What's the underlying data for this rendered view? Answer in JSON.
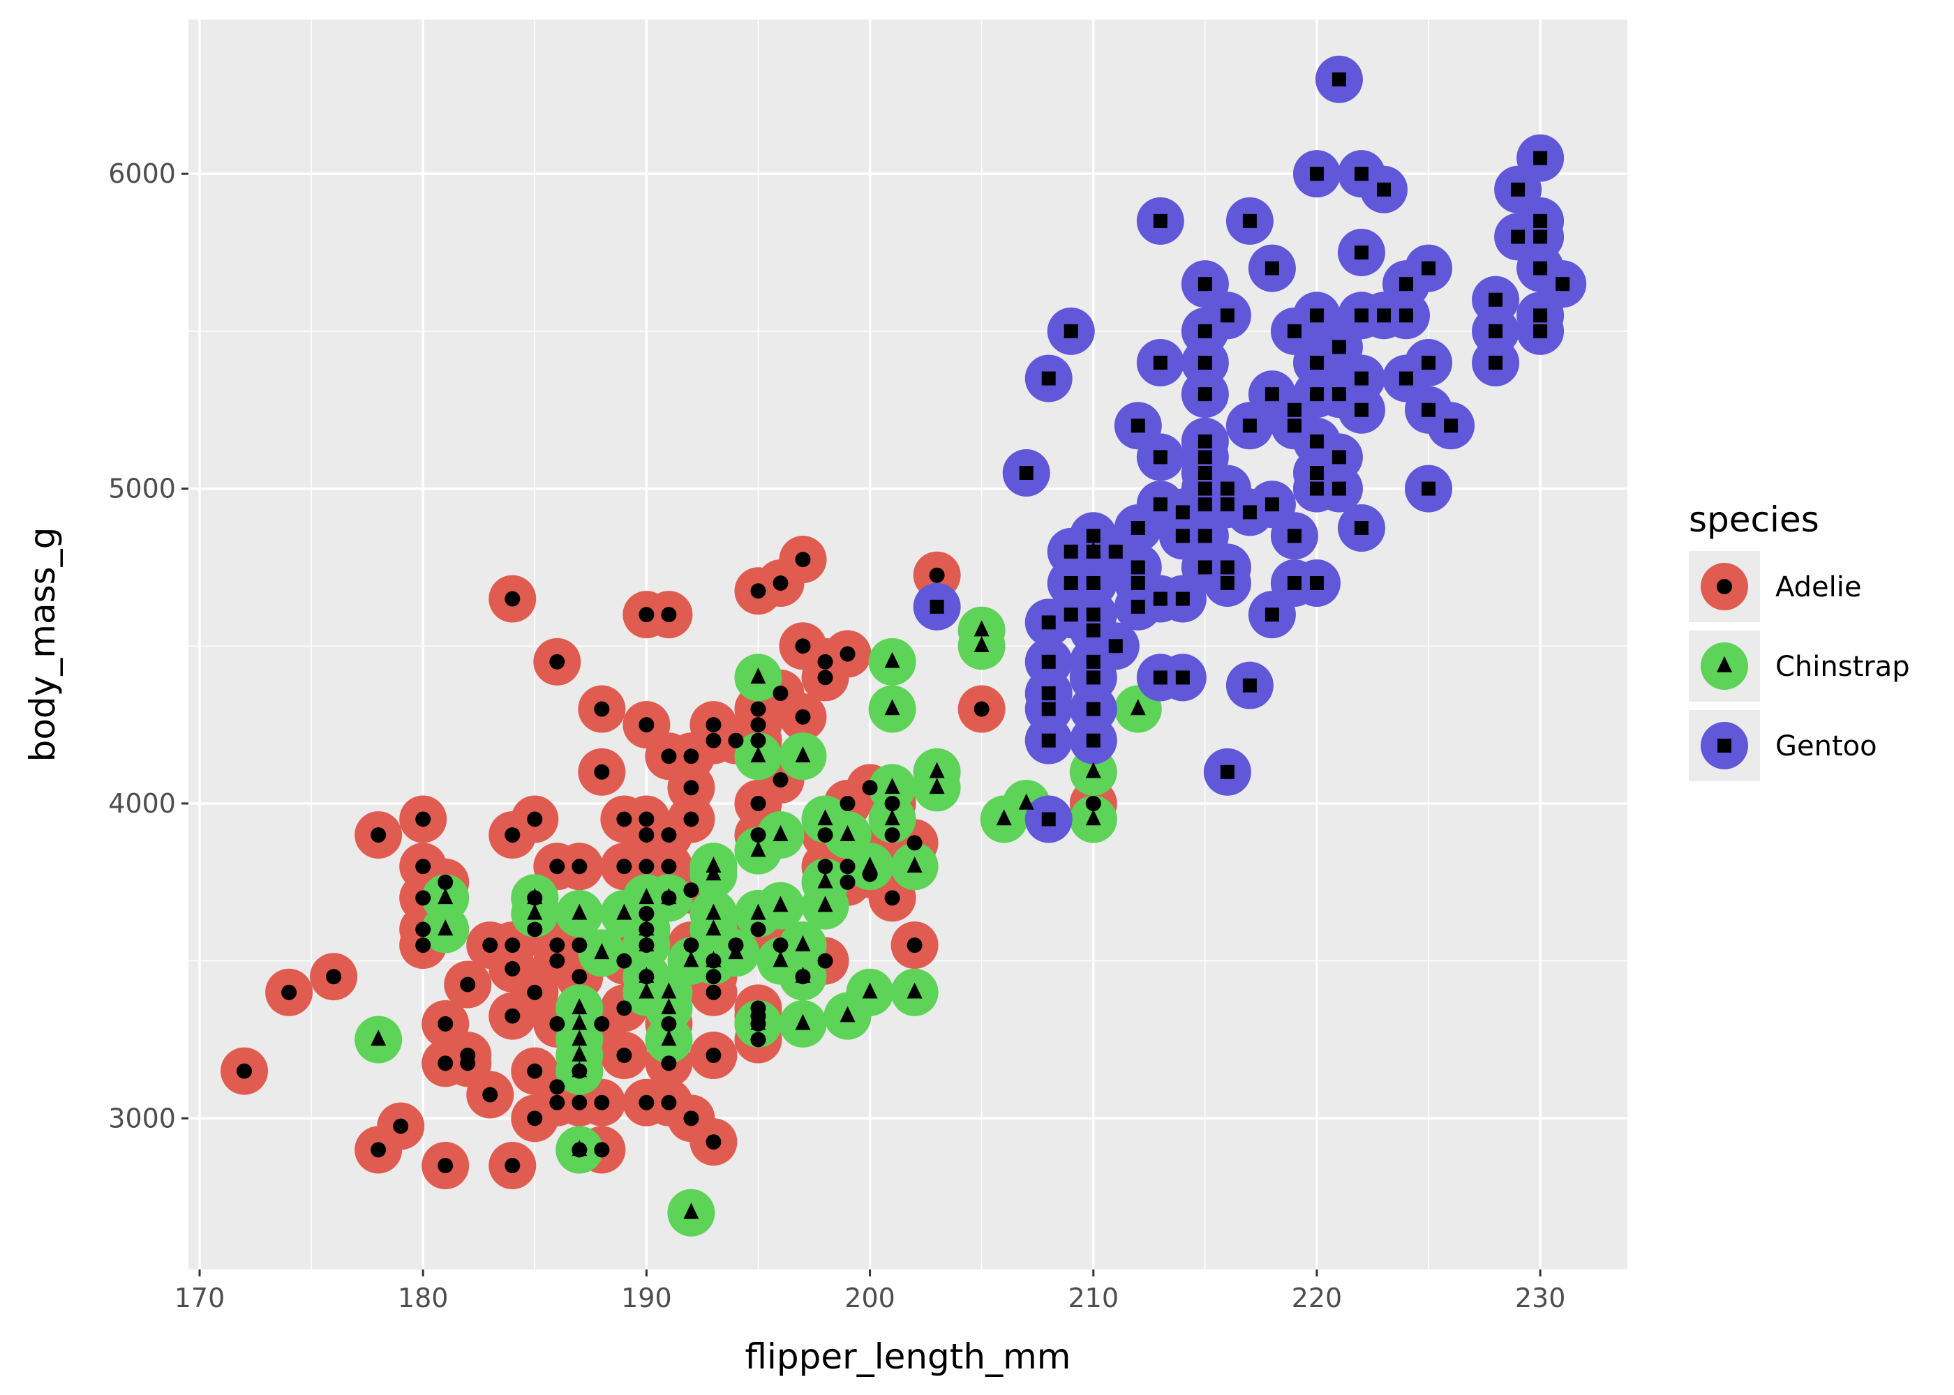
{
  "chart_data": {
    "type": "scatter",
    "xlabel": "flipper_length_mm",
    "ylabel": "body_mass_g",
    "xlim": [
      169.5,
      233.9
    ],
    "ylim": [
      2520,
      6490
    ],
    "xticks": [
      170,
      180,
      190,
      200,
      210,
      220,
      230
    ],
    "yticks": [
      3000,
      4000,
      5000,
      6000
    ],
    "x_tick_labels": [
      "170",
      "180",
      "190",
      "200",
      "210",
      "220",
      "230"
    ],
    "y_tick_labels": [
      "3000",
      "4000",
      "5000",
      "6000"
    ],
    "grid": true,
    "panel_background": "#ebebeb",
    "legend": {
      "title": "species",
      "placement": "right",
      "entries": [
        "Adelie",
        "Chinstrap",
        "Gentoo"
      ]
    },
    "series": [
      {
        "name": "Adelie",
        "color": "#e05c50",
        "marker": "circle",
        "points": [
          [
            172,
            3150
          ],
          [
            174,
            3400
          ],
          [
            176,
            3450
          ],
          [
            178,
            2900
          ],
          [
            178,
            3900
          ],
          [
            179,
            2975
          ],
          [
            180,
            3550
          ],
          [
            180,
            3600
          ],
          [
            180,
            3700
          ],
          [
            180,
            3800
          ],
          [
            180,
            3950
          ],
          [
            181,
            2850
          ],
          [
            181,
            3175
          ],
          [
            181,
            3300
          ],
          [
            181,
            3750
          ],
          [
            182,
            3175
          ],
          [
            182,
            3200
          ],
          [
            182,
            3425
          ],
          [
            183,
            3075
          ],
          [
            183,
            3550
          ],
          [
            184,
            2850
          ],
          [
            184,
            3325
          ],
          [
            184,
            3475
          ],
          [
            184,
            3550
          ],
          [
            184,
            3900
          ],
          [
            184,
            4650
          ],
          [
            185,
            3000
          ],
          [
            185,
            3150
          ],
          [
            185,
            3400
          ],
          [
            185,
            3600
          ],
          [
            185,
            3700
          ],
          [
            185,
            3950
          ],
          [
            186,
            3050
          ],
          [
            186,
            3100
          ],
          [
            186,
            3300
          ],
          [
            186,
            3500
          ],
          [
            186,
            3550
          ],
          [
            186,
            3800
          ],
          [
            186,
            4450
          ],
          [
            187,
            2900
          ],
          [
            187,
            3050
          ],
          [
            187,
            3150
          ],
          [
            187,
            3450
          ],
          [
            187,
            3550
          ],
          [
            187,
            3800
          ],
          [
            188,
            2900
          ],
          [
            188,
            3050
          ],
          [
            188,
            3300
          ],
          [
            188,
            4100
          ],
          [
            188,
            4300
          ],
          [
            189,
            3200
          ],
          [
            189,
            3350
          ],
          [
            189,
            3500
          ],
          [
            189,
            3800
          ],
          [
            189,
            3950
          ],
          [
            190,
            3050
          ],
          [
            190,
            3450
          ],
          [
            190,
            3550
          ],
          [
            190,
            3600
          ],
          [
            190,
            3650
          ],
          [
            190,
            3800
          ],
          [
            190,
            3900
          ],
          [
            190,
            3950
          ],
          [
            190,
            4250
          ],
          [
            190,
            4600
          ],
          [
            191,
            3050
          ],
          [
            191,
            3175
          ],
          [
            191,
            3300
          ],
          [
            191,
            3700
          ],
          [
            191,
            3800
          ],
          [
            191,
            3900
          ],
          [
            191,
            4150
          ],
          [
            191,
            4600
          ],
          [
            192,
            3000
          ],
          [
            192,
            3550
          ],
          [
            192,
            3725
          ],
          [
            192,
            3950
          ],
          [
            192,
            4050
          ],
          [
            192,
            4150
          ],
          [
            193,
            2925
          ],
          [
            193,
            3200
          ],
          [
            193,
            3400
          ],
          [
            193,
            3450
          ],
          [
            193,
            3500
          ],
          [
            193,
            4200
          ],
          [
            193,
            4250
          ],
          [
            194,
            3550
          ],
          [
            194,
            4200
          ],
          [
            195,
            3250
          ],
          [
            195,
            3300
          ],
          [
            195,
            3325
          ],
          [
            195,
            3350
          ],
          [
            195,
            3600
          ],
          [
            195,
            3900
          ],
          [
            195,
            4000
          ],
          [
            195,
            4200
          ],
          [
            195,
            4250
          ],
          [
            195,
            4300
          ],
          [
            195,
            4675
          ],
          [
            196,
            3550
          ],
          [
            196,
            4075
          ],
          [
            196,
            4350
          ],
          [
            196,
            4700
          ],
          [
            197,
            3450
          ],
          [
            197,
            4275
          ],
          [
            197,
            4500
          ],
          [
            197,
            4775
          ],
          [
            198,
            3500
          ],
          [
            198,
            3800
          ],
          [
            198,
            3900
          ],
          [
            198,
            4400
          ],
          [
            198,
            4450
          ],
          [
            199,
            3750
          ],
          [
            199,
            3800
          ],
          [
            199,
            4000
          ],
          [
            199,
            4475
          ],
          [
            200,
            3775
          ],
          [
            200,
            4050
          ],
          [
            201,
            3700
          ],
          [
            201,
            3900
          ],
          [
            201,
            4000
          ],
          [
            202,
            3550
          ],
          [
            202,
            3875
          ],
          [
            203,
            4725
          ],
          [
            205,
            4300
          ],
          [
            210,
            4000
          ]
        ]
      },
      {
        "name": "Chinstrap",
        "color": "#5dd358",
        "marker": "triangle",
        "points": [
          [
            178,
            3250
          ],
          [
            181,
            3600
          ],
          [
            181,
            3700
          ],
          [
            185,
            3650
          ],
          [
            185,
            3700
          ],
          [
            187,
            2900
          ],
          [
            187,
            3150
          ],
          [
            187,
            3200
          ],
          [
            187,
            3250
          ],
          [
            187,
            3300
          ],
          [
            187,
            3350
          ],
          [
            187,
            3650
          ],
          [
            188,
            3525
          ],
          [
            189,
            3650
          ],
          [
            190,
            3400
          ],
          [
            190,
            3450
          ],
          [
            190,
            3550
          ],
          [
            190,
            3600
          ],
          [
            190,
            3700
          ],
          [
            191,
            3250
          ],
          [
            191,
            3350
          ],
          [
            191,
            3400
          ],
          [
            191,
            3700
          ],
          [
            192,
            2700
          ],
          [
            192,
            3500
          ],
          [
            193,
            3500
          ],
          [
            193,
            3600
          ],
          [
            193,
            3650
          ],
          [
            193,
            3775
          ],
          [
            193,
            3800
          ],
          [
            194,
            3525
          ],
          [
            195,
            3300
          ],
          [
            195,
            3650
          ],
          [
            195,
            3850
          ],
          [
            195,
            4150
          ],
          [
            195,
            4400
          ],
          [
            196,
            3500
          ],
          [
            196,
            3675
          ],
          [
            196,
            3900
          ],
          [
            197,
            3300
          ],
          [
            197,
            3450
          ],
          [
            197,
            3550
          ],
          [
            197,
            4150
          ],
          [
            198,
            3675
          ],
          [
            198,
            3750
          ],
          [
            198,
            3950
          ],
          [
            199,
            3325
          ],
          [
            199,
            3900
          ],
          [
            200,
            3400
          ],
          [
            200,
            3800
          ],
          [
            201,
            3950
          ],
          [
            201,
            4050
          ],
          [
            201,
            4300
          ],
          [
            201,
            4450
          ],
          [
            202,
            3400
          ],
          [
            202,
            3800
          ],
          [
            203,
            4050
          ],
          [
            203,
            4100
          ],
          [
            205,
            4500
          ],
          [
            205,
            4550
          ],
          [
            206,
            3950
          ],
          [
            207,
            4000
          ],
          [
            210,
            3950
          ],
          [
            210,
            4100
          ],
          [
            210,
            4800
          ],
          [
            212,
            4300
          ]
        ]
      },
      {
        "name": "Gentoo",
        "color": "#6157d9",
        "marker": "square",
        "points": [
          [
            203,
            4625
          ],
          [
            207,
            5050
          ],
          [
            208,
            3950
          ],
          [
            208,
            4200
          ],
          [
            208,
            4300
          ],
          [
            208,
            4350
          ],
          [
            208,
            4450
          ],
          [
            208,
            4575
          ],
          [
            208,
            5350
          ],
          [
            209,
            4600
          ],
          [
            209,
            4700
          ],
          [
            209,
            4800
          ],
          [
            209,
            5500
          ],
          [
            210,
            4200
          ],
          [
            210,
            4300
          ],
          [
            210,
            4400
          ],
          [
            210,
            4450
          ],
          [
            210,
            4550
          ],
          [
            210,
            4600
          ],
          [
            210,
            4700
          ],
          [
            210,
            4800
          ],
          [
            210,
            4850
          ],
          [
            211,
            4500
          ],
          [
            211,
            4800
          ],
          [
            212,
            4625
          ],
          [
            212,
            4700
          ],
          [
            212,
            4750
          ],
          [
            212,
            4875
          ],
          [
            212,
            5200
          ],
          [
            213,
            4400
          ],
          [
            213,
            4650
          ],
          [
            213,
            4950
          ],
          [
            213,
            5100
          ],
          [
            213,
            5400
          ],
          [
            213,
            5850
          ],
          [
            214,
            4400
          ],
          [
            214,
            4650
          ],
          [
            214,
            4850
          ],
          [
            214,
            4925
          ],
          [
            215,
            4750
          ],
          [
            215,
            4850
          ],
          [
            215,
            4950
          ],
          [
            215,
            5000
          ],
          [
            215,
            5050
          ],
          [
            215,
            5100
          ],
          [
            215,
            5150
          ],
          [
            215,
            5300
          ],
          [
            215,
            5400
          ],
          [
            215,
            5500
          ],
          [
            215,
            5650
          ],
          [
            216,
            4100
          ],
          [
            216,
            4700
          ],
          [
            216,
            4750
          ],
          [
            216,
            4950
          ],
          [
            216,
            5000
          ],
          [
            216,
            5550
          ],
          [
            217,
            4375
          ],
          [
            217,
            4925
          ],
          [
            217,
            5200
          ],
          [
            217,
            5850
          ],
          [
            218,
            4600
          ],
          [
            218,
            4950
          ],
          [
            218,
            5300
          ],
          [
            218,
            5700
          ],
          [
            219,
            4700
          ],
          [
            219,
            4850
          ],
          [
            219,
            5200
          ],
          [
            219,
            5250
          ],
          [
            219,
            5500
          ],
          [
            220,
            4700
          ],
          [
            220,
            5000
          ],
          [
            220,
            5050
          ],
          [
            220,
            5150
          ],
          [
            220,
            5300
          ],
          [
            220,
            5400
          ],
          [
            220,
            5550
          ],
          [
            220,
            6000
          ],
          [
            221,
            5000
          ],
          [
            221,
            5100
          ],
          [
            221,
            5300
          ],
          [
            221,
            5450
          ],
          [
            221,
            6300
          ],
          [
            222,
            4875
          ],
          [
            222,
            5250
          ],
          [
            222,
            5350
          ],
          [
            222,
            5550
          ],
          [
            222,
            5750
          ],
          [
            222,
            6000
          ],
          [
            223,
            5550
          ],
          [
            223,
            5950
          ],
          [
            224,
            5350
          ],
          [
            224,
            5550
          ],
          [
            224,
            5650
          ],
          [
            225,
            5000
          ],
          [
            225,
            5250
          ],
          [
            225,
            5400
          ],
          [
            225,
            5700
          ],
          [
            226,
            5200
          ],
          [
            228,
            5400
          ],
          [
            228,
            5500
          ],
          [
            228,
            5600
          ],
          [
            229,
            5800
          ],
          [
            229,
            5950
          ],
          [
            230,
            5500
          ],
          [
            230,
            5550
          ],
          [
            230,
            5700
          ],
          [
            230,
            5800
          ],
          [
            230,
            5850
          ],
          [
            230,
            6050
          ],
          [
            231,
            5650
          ]
        ]
      }
    ]
  }
}
